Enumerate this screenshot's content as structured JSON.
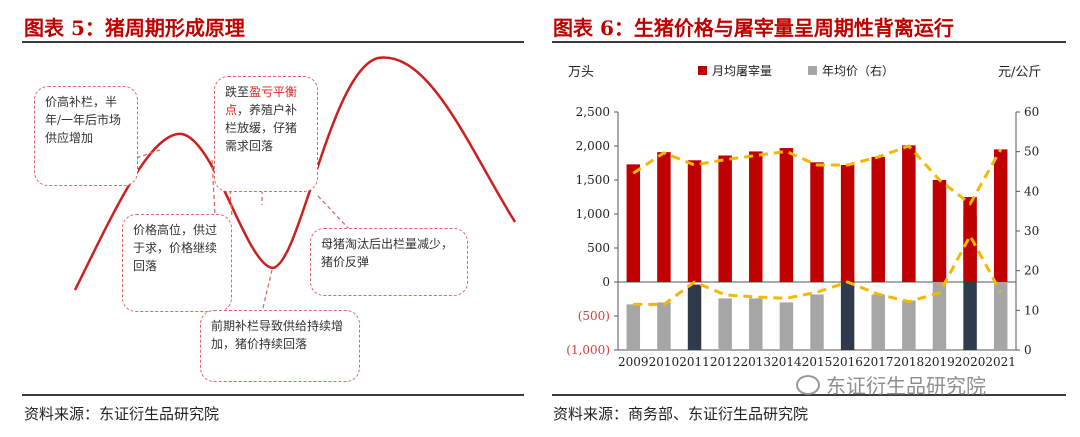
{
  "left": {
    "title": "图表 5：猪周期形成原理",
    "source": "资料来源：东证衍生品研究院",
    "notes": {
      "n1": "价高补栏，半年/一年后市场供应增加",
      "n2_a": "跌至",
      "n2_hl": "盈亏平衡点",
      "n2_b": "，养殖户补栏放缓，仔猪需求回落",
      "n3": "价格高位，供过于求，价格继续回落",
      "n4": "母猪淘汰后出栏量减少，猪价反弹",
      "n5": "前期补栏导致供给持续增加，猪价持续回落"
    }
  },
  "right": {
    "title": "图表 6：生猪价格与屠宰量呈周期性背离运行",
    "source": "资料来源：商务部、东证衍生品研究院",
    "watermark": "东证衍生品研究院",
    "colors": {
      "bar": "#c00000",
      "gray": "#a6a6a6",
      "dark": "#2f3b4c",
      "line": "#f5b800"
    }
  },
  "chart_data": {
    "type": "bar",
    "categories": [
      "2009",
      "2010",
      "2011",
      "2012",
      "2013",
      "2014",
      "2015",
      "2016",
      "2017",
      "2018",
      "2019",
      "2020",
      "2021"
    ],
    "left_unit": "万头",
    "right_unit": "元/公斤",
    "legend": [
      "月均屠宰量",
      "年均价（右）"
    ],
    "legend_position": "top-center",
    "y_left": {
      "range": [
        -1000,
        2500
      ],
      "ticks": [
        "(1,000)",
        "(500)",
        "0",
        "500",
        "1,000",
        "1,500",
        "2,000",
        "2,500"
      ]
    },
    "y_right": {
      "range": [
        0,
        60
      ],
      "ticks": [
        "0",
        "10",
        "20",
        "30",
        "40",
        "50",
        "60"
      ]
    },
    "series": [
      {
        "name": "月均屠宰量",
        "axis": "left",
        "values": [
          1730,
          1910,
          1790,
          1860,
          1920,
          1970,
          1760,
          1720,
          1840,
          2010,
          1500,
          1250,
          1950
        ]
      },
      {
        "name": "年均价（右）",
        "axis": "right",
        "values": [
          11.5,
          12,
          16.5,
          13,
          13,
          12,
          14,
          18,
          14,
          12.5,
          20,
          34,
          20
        ]
      }
    ],
    "price_highlight_years": [
      "2011",
      "2016",
      "2020"
    ],
    "trend_line": {
      "style": "dashed",
      "values": [
        1600,
        1900,
        1720,
        1800,
        1860,
        1920,
        1720,
        1720,
        1840,
        2000,
        1500,
        1150,
        1950
      ]
    },
    "lower_trend_line": {
      "style": "dashed",
      "values": [
        -330,
        -330,
        0,
        -190,
        -220,
        -240,
        -150,
        0,
        -180,
        -290,
        -160,
        680,
        -150
      ]
    }
  }
}
